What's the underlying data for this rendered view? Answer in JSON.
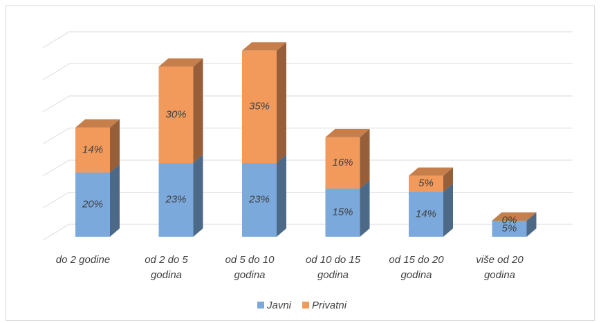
{
  "chart_data": {
    "type": "bar3d_stacked",
    "categories": [
      "do 2 godine",
      "od 2 do 5 godina",
      "od 5 do 10 godina",
      "od 10 do 15 godina",
      "od 15 do 20 godina",
      "više od 20 godina"
    ],
    "series": [
      {
        "name": "Javni",
        "color": "#7ba9dc",
        "values": [
          20,
          23,
          23,
          15,
          14,
          5
        ],
        "value_labels": [
          "20%",
          "23%",
          "23%",
          "15%",
          "14%",
          "5%"
        ]
      },
      {
        "name": "Privatni",
        "color": "#f29a5c",
        "values": [
          14,
          30,
          35,
          16,
          5,
          0
        ],
        "value_labels": [
          "14%",
          "30%",
          "35%",
          "16%",
          "5%",
          "0%"
        ]
      }
    ],
    "ylim": [
      0,
      60
    ],
    "yticks": [
      0,
      10,
      20,
      30,
      40,
      50,
      60
    ],
    "grid": true,
    "legend": "bottom"
  }
}
